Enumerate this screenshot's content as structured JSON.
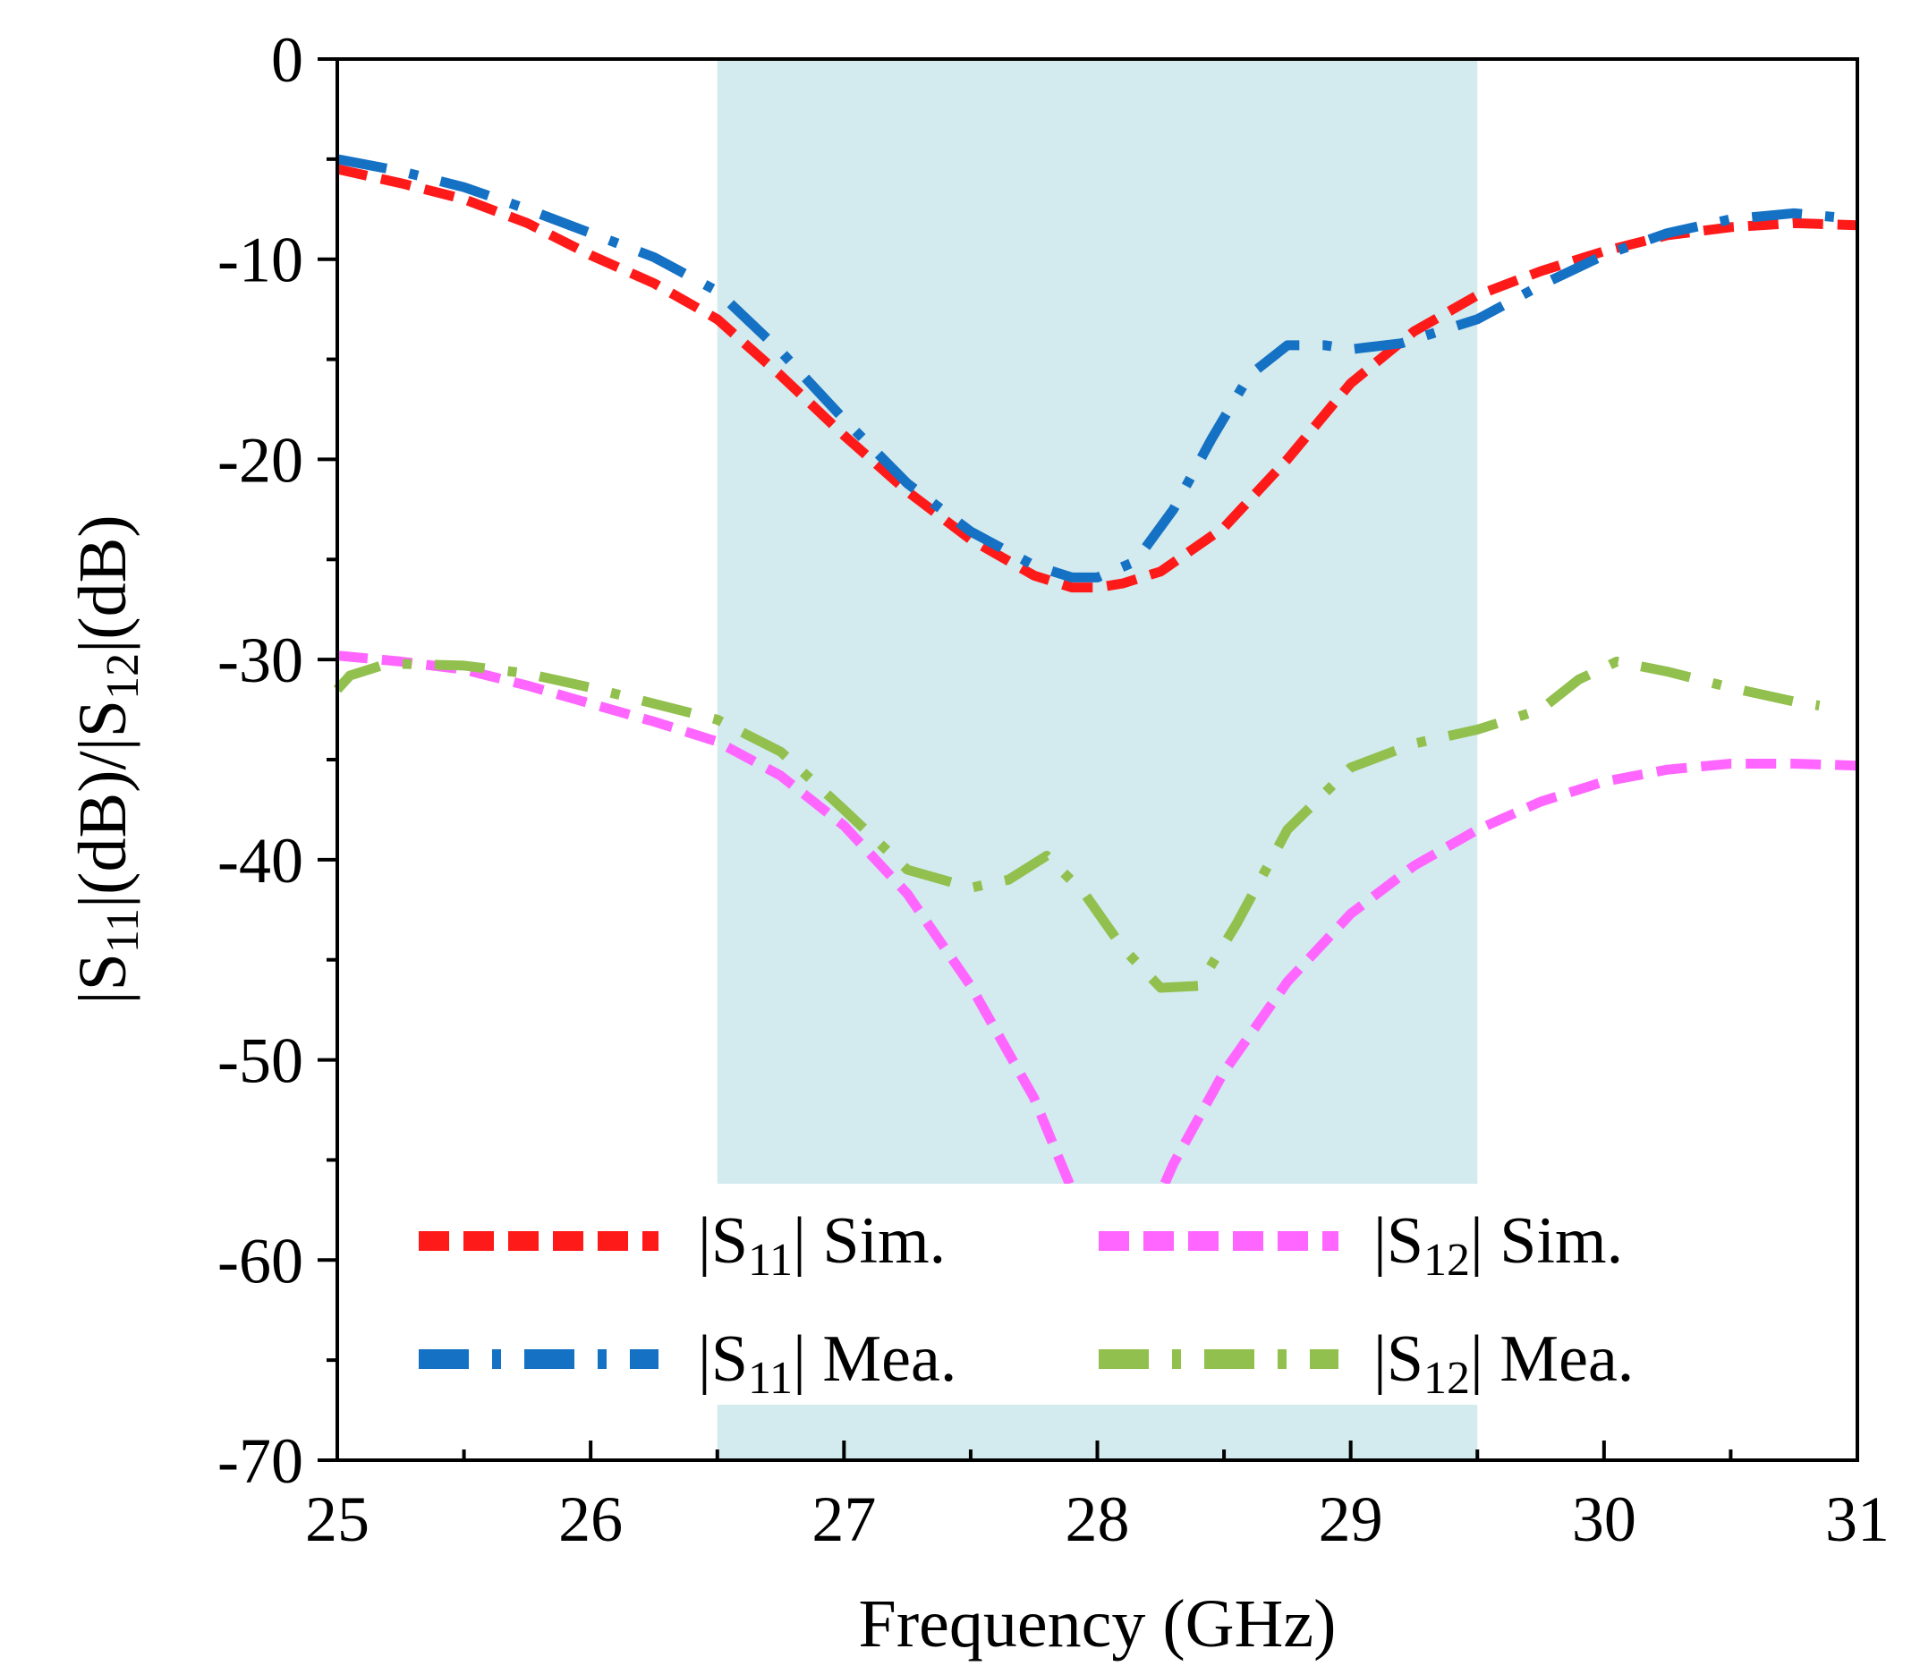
{
  "chart_data": {
    "type": "line",
    "xlabel": "Frequency (GHz)",
    "ylabel": "|S11|(dB)/|S12|(dB)",
    "ylabel_parts": [
      "|S",
      "11",
      "|(dB)/|S",
      "12",
      "|(dB)"
    ],
    "xlim": [
      25,
      31
    ],
    "ylim": [
      -70,
      0
    ],
    "x_ticks": [
      25,
      26,
      27,
      28,
      29,
      30,
      31
    ],
    "y_ticks": [
      0,
      -10,
      -20,
      -30,
      -40,
      -50,
      -60,
      -70
    ],
    "x_tick_labels": [
      "25",
      "26",
      "27",
      "28",
      "29",
      "30",
      "31"
    ],
    "y_tick_labels": [
      "0",
      "-10",
      "-20",
      "-30",
      "-40",
      "-50",
      "-60",
      "-70"
    ],
    "x_minor_step": 0.5,
    "y_minor_step": 5,
    "grid": false,
    "shaded_band": {
      "x_range": [
        26.5,
        29.5
      ],
      "color": "#d3eaee"
    },
    "legend_placement": "bottom",
    "series": [
      {
        "name": "|S11| Sim.",
        "legend_parts": [
          "|S",
          "11",
          "| Sim."
        ],
        "color": "#ff1a1a",
        "dash": "sim",
        "x": [
          25.0,
          25.25,
          25.5,
          25.75,
          26.0,
          26.25,
          26.5,
          26.75,
          27.0,
          27.25,
          27.5,
          27.75,
          27.9,
          28.0,
          28.1,
          28.25,
          28.5,
          28.75,
          29.0,
          29.25,
          29.5,
          29.75,
          30.0,
          30.25,
          30.5,
          30.75,
          31.0
        ],
        "y": [
          -5.5,
          -6.2,
          -7.0,
          -8.2,
          -9.8,
          -11.2,
          -13.0,
          -15.8,
          -18.8,
          -21.6,
          -24.0,
          -25.8,
          -26.4,
          -26.4,
          -26.2,
          -25.6,
          -23.4,
          -20.0,
          -16.2,
          -13.6,
          -11.8,
          -10.6,
          -9.6,
          -8.8,
          -8.4,
          -8.2,
          -8.3
        ]
      },
      {
        "name": "|S11| Mea.",
        "legend_parts": [
          "|S",
          "11",
          "| Mea."
        ],
        "color": "#1471c4",
        "dash": "mea",
        "x": [
          25.0,
          25.25,
          25.5,
          25.75,
          26.0,
          26.25,
          26.5,
          26.75,
          27.0,
          27.25,
          27.5,
          27.75,
          27.9,
          28.0,
          28.15,
          28.3,
          28.45,
          28.6,
          28.75,
          28.9,
          29.0,
          29.2,
          29.5,
          29.75,
          30.0,
          30.25,
          30.5,
          30.75,
          31.0
        ],
        "y": [
          -5.0,
          -5.6,
          -6.4,
          -7.5,
          -8.7,
          -9.9,
          -11.6,
          -14.6,
          -18.0,
          -21.2,
          -23.6,
          -25.3,
          -25.9,
          -25.9,
          -25.1,
          -22.5,
          -19.0,
          -15.8,
          -14.3,
          -14.3,
          -14.5,
          -14.2,
          -13.0,
          -11.3,
          -9.8,
          -8.7,
          -8.0,
          -7.7,
          -8.0
        ]
      },
      {
        "name": "|S12| Sim.",
        "legend_parts": [
          "|S",
          "12",
          "| Sim."
        ],
        "color": "#ff66ff",
        "dash": "sim",
        "x": [
          25.0,
          25.25,
          25.5,
          25.75,
          26.0,
          26.25,
          26.5,
          26.75,
          27.0,
          27.25,
          27.5,
          27.75,
          27.9,
          28.0,
          28.15,
          28.3,
          28.5,
          28.75,
          29.0,
          29.25,
          29.5,
          29.75,
          30.0,
          30.25,
          30.5,
          30.75,
          31.0
        ],
        "y": [
          -29.8,
          -30.1,
          -30.5,
          -31.3,
          -32.2,
          -33.1,
          -34.1,
          -35.8,
          -38.3,
          -41.7,
          -46.3,
          -51.9,
          -56.5,
          -61.5,
          -59.5,
          -55.2,
          -50.6,
          -46.1,
          -42.7,
          -40.3,
          -38.5,
          -37.1,
          -36.1,
          -35.5,
          -35.2,
          -35.2,
          -35.3
        ]
      },
      {
        "name": "|S12| Mea.",
        "legend_parts": [
          "|S",
          "12",
          "| Mea."
        ],
        "color": "#92c04e",
        "dash": "mea",
        "x": [
          25.0,
          25.05,
          25.2,
          25.5,
          25.75,
          26.0,
          26.25,
          26.5,
          26.75,
          27.0,
          27.25,
          27.5,
          27.65,
          27.8,
          27.95,
          28.1,
          28.25,
          28.4,
          28.55,
          28.75,
          29.0,
          29.25,
          29.5,
          29.75,
          29.9,
          30.05,
          30.25,
          30.5,
          30.75,
          30.85
        ],
        "y": [
          -31.5,
          -30.8,
          -30.2,
          -30.3,
          -30.7,
          -31.4,
          -32.2,
          -33.0,
          -34.6,
          -37.5,
          -40.5,
          -41.4,
          -41.0,
          -39.8,
          -41.7,
          -44.4,
          -46.4,
          -46.3,
          -43.2,
          -38.5,
          -35.4,
          -34.2,
          -33.5,
          -32.5,
          -31.0,
          -30.1,
          -30.6,
          -31.4,
          -32.1,
          -32.3
        ]
      }
    ]
  }
}
